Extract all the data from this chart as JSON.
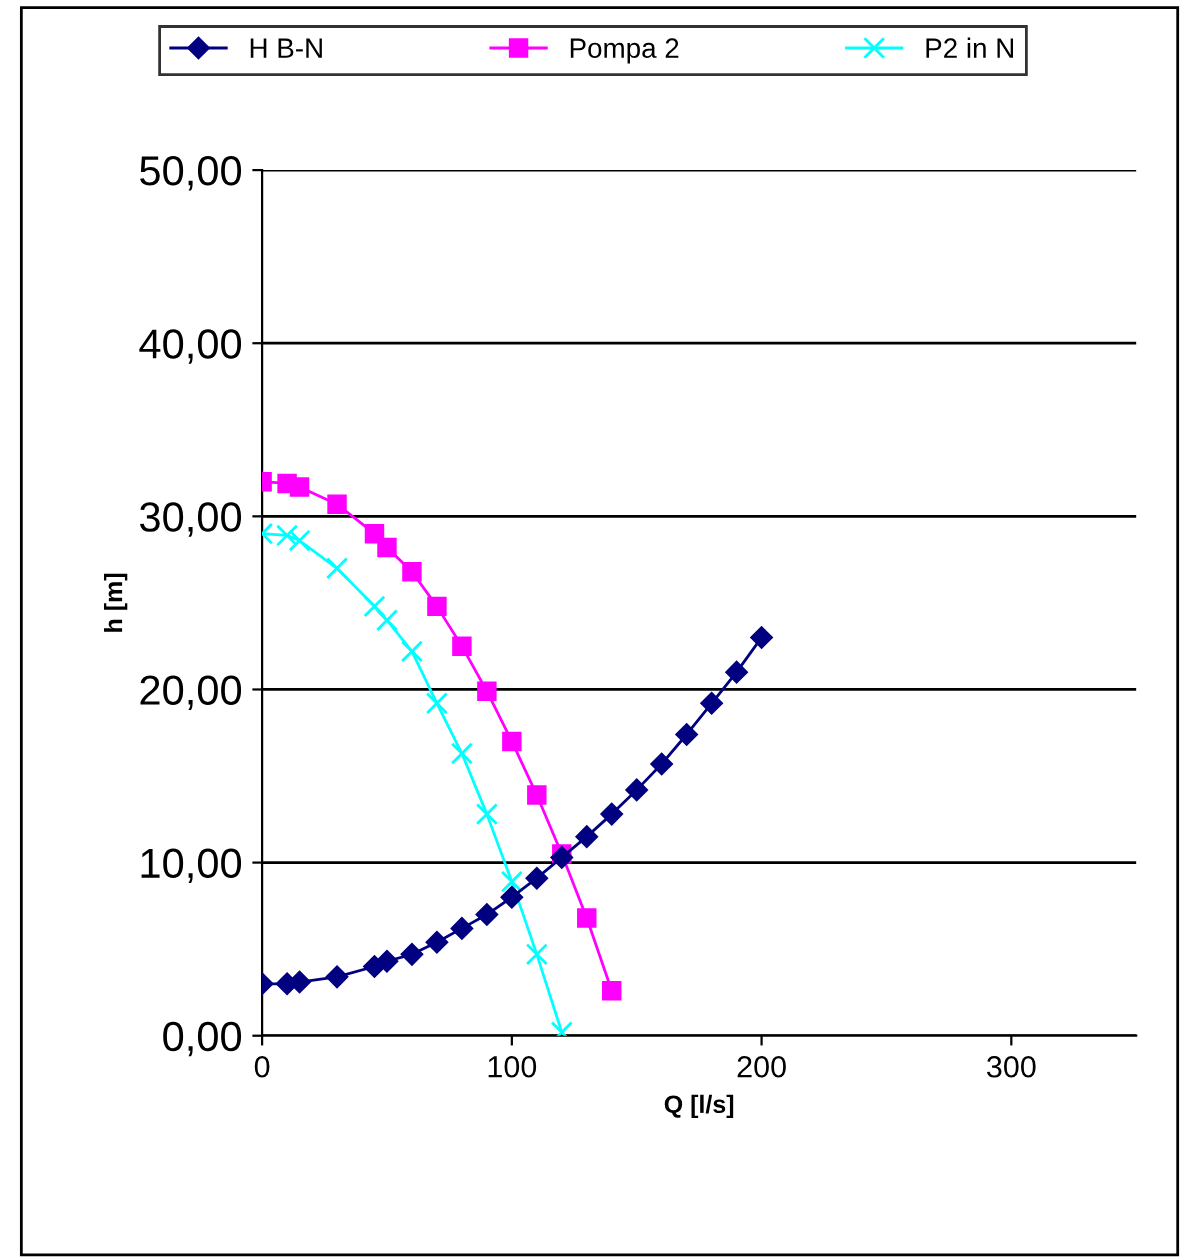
{
  "chart_data": {
    "type": "line",
    "xlabel": "Q [l/s]",
    "ylabel": "h [m]",
    "xlim": [
      0,
      350
    ],
    "xticks": [
      0,
      100,
      200,
      300
    ],
    "ylim": [
      0,
      50
    ],
    "yticks": [
      {
        "value": 0,
        "label": "0,00"
      },
      {
        "value": 10,
        "label": "10,00"
      },
      {
        "value": 20,
        "label": "20,00"
      },
      {
        "value": 30,
        "label": "30,00"
      },
      {
        "value": 40,
        "label": "40,00"
      },
      {
        "value": 50,
        "label": "50,00"
      }
    ],
    "grid": "y",
    "legend": "top",
    "series": [
      {
        "name": "H B-N",
        "color": "#000080",
        "marker": "diamond",
        "x": [
          0,
          10,
          15,
          30,
          45,
          50,
          60,
          70,
          80,
          90,
          100,
          110,
          120,
          130,
          140,
          150,
          160,
          170,
          180,
          190,
          200
        ],
        "values": [
          3.0,
          3.0,
          3.1,
          3.4,
          4.0,
          4.3,
          4.7,
          5.4,
          6.2,
          7.0,
          8.0,
          9.1,
          10.3,
          11.5,
          12.8,
          14.2,
          15.7,
          17.4,
          19.2,
          21.0,
          23.0
        ]
      },
      {
        "name": "Pompa 2",
        "color": "#ff00ff",
        "marker": "square",
        "x": [
          0,
          10,
          15,
          30,
          45,
          50,
          60,
          70,
          80,
          90,
          100,
          110,
          120,
          130,
          140
        ],
        "values": [
          32.0,
          31.9,
          31.7,
          30.7,
          29.0,
          28.2,
          26.8,
          24.8,
          22.5,
          19.9,
          17.0,
          13.9,
          10.5,
          6.8,
          2.6
        ]
      },
      {
        "name": "P2 in N",
        "color": "#00ffff",
        "marker": "cross",
        "x": [
          0,
          10,
          15,
          30,
          45,
          50,
          60,
          70,
          80,
          90,
          100,
          110,
          120
        ],
        "values": [
          29.0,
          28.9,
          28.6,
          27.0,
          24.8,
          24.0,
          22.2,
          19.2,
          16.3,
          12.8,
          8.9,
          4.7,
          0.2
        ]
      }
    ]
  }
}
